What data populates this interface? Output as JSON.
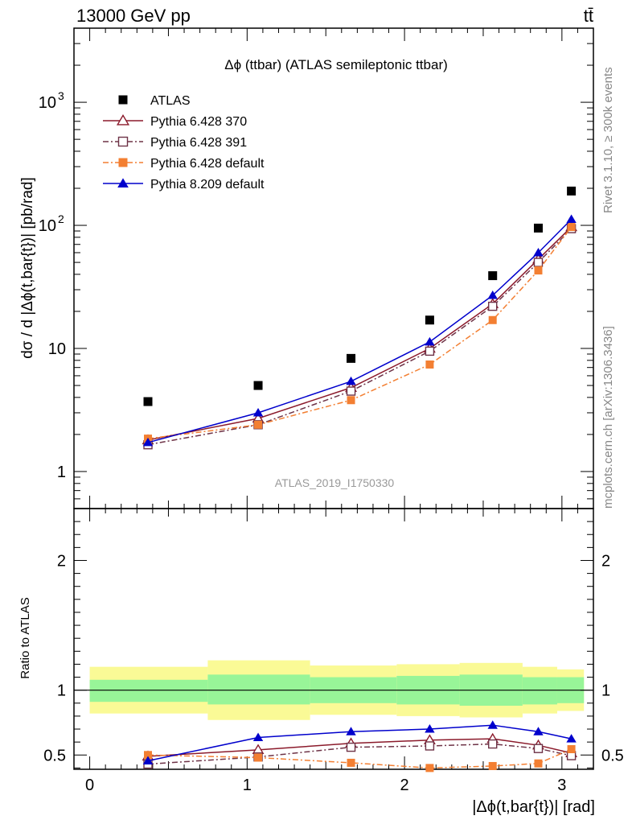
{
  "header": {
    "left": "13000 GeV pp",
    "right": "tt̄"
  },
  "side_labels": {
    "rivet": "Rivet 3.1.10, ≥ 300k events",
    "mcplots": "mcplots.cern.ch [arXiv:1306.3436]"
  },
  "chart_data": [
    {
      "type": "scatter",
      "panel": "main",
      "title": "Δϕ (ttbar) (ATLAS semileptonic ttbar)",
      "watermark": "ATLAS_2019_I1750330",
      "ylabel": "dσ / d |Δϕ(t,bar{t})| [pb/rad]",
      "yscale": "log",
      "ylim": [
        0.5,
        4000
      ],
      "xlim": [
        -0.1,
        3.2
      ],
      "yticks": [
        {
          "v": 1,
          "label": "1"
        },
        {
          "v": 10,
          "label": "10"
        },
        {
          "v": 100,
          "label": "10",
          "exp": "2"
        },
        {
          "v": 1000,
          "label": "10",
          "exp": "3"
        }
      ],
      "legend_position": "top-left",
      "x": [
        0.37,
        1.07,
        1.66,
        2.16,
        2.56,
        2.85,
        3.06
      ],
      "series": [
        {
          "name": "ATLAS",
          "kind": "data",
          "marker": "square-filled",
          "color": "#000000",
          "values": [
            3.7,
            5.0,
            8.3,
            17.0,
            39.0,
            95.0,
            190.0
          ]
        },
        {
          "name": "Pythia 6.428 370",
          "kind": "mc",
          "marker": "triangle-open",
          "color": "#8b1a2b",
          "dash": "",
          "values": [
            1.8,
            2.7,
            4.8,
            10.0,
            23.0,
            53.0,
            97.0
          ]
        },
        {
          "name": "Pythia 6.428 391",
          "kind": "mc",
          "marker": "square-open",
          "color": "#6e3347",
          "dash": "7,3,2,3",
          "values": [
            1.65,
            2.4,
            4.5,
            9.5,
            22.0,
            50.0,
            94.0
          ]
        },
        {
          "name": "Pythia 6.428 default",
          "kind": "mc",
          "marker": "square-filled",
          "color": "#f37f32",
          "dash": "7,3,2,3",
          "values": [
            1.85,
            2.4,
            3.8,
            7.4,
            17.0,
            43.0,
            97.0
          ]
        },
        {
          "name": "Pythia 8.209 default",
          "kind": "mc",
          "marker": "triangle-filled",
          "color": "#0000cc",
          "dash": "",
          "values": [
            1.72,
            3.0,
            5.4,
            11.3,
            27.0,
            60.0,
            112.0
          ]
        }
      ]
    },
    {
      "type": "line",
      "panel": "ratio",
      "ylabel": "Ratio to ATLAS",
      "xlabel": "|Δϕ(t,bar{t})| [rad]",
      "ylim": [
        0.39,
        2.4
      ],
      "xlim": [
        -0.1,
        3.2
      ],
      "xticks": [
        0,
        1,
        2,
        3
      ],
      "yticks": [
        0.5,
        1,
        2
      ],
      "reference_line": 1,
      "bin_edges": [
        0,
        0.75,
        1.4,
        1.95,
        2.35,
        2.75,
        2.97,
        3.14
      ],
      "band_inner": [
        0.91,
        1.08,
        0.89,
        1.12,
        0.9,
        1.1,
        0.89,
        1.11,
        0.88,
        1.12,
        0.89,
        1.1,
        0.9,
        1.1
      ],
      "band_outer": [
        0.82,
        1.18,
        0.77,
        1.23,
        0.81,
        1.19,
        0.8,
        1.2,
        0.79,
        1.21,
        0.82,
        1.18,
        0.84,
        1.16
      ],
      "band_colors": {
        "inner": "#98f598",
        "outer": "#fafa96"
      },
      "x": [
        0.37,
        1.07,
        1.66,
        2.16,
        2.56,
        2.85,
        3.06
      ],
      "series": [
        {
          "name": "Pythia 6.428 370",
          "values": [
            0.49,
            0.54,
            0.59,
            0.615,
            0.625,
            0.575,
            0.515
          ]
        },
        {
          "name": "Pythia 6.428 391",
          "values": [
            0.43,
            0.485,
            0.56,
            0.57,
            0.585,
            0.55,
            0.495
          ]
        },
        {
          "name": "Pythia 6.428 default",
          "values": [
            0.5,
            0.48,
            0.44,
            0.4,
            0.415,
            0.435,
            0.545
          ]
        },
        {
          "name": "Pythia 8.209 default",
          "values": [
            0.455,
            0.635,
            0.68,
            0.7,
            0.73,
            0.68,
            0.625
          ]
        }
      ]
    }
  ]
}
